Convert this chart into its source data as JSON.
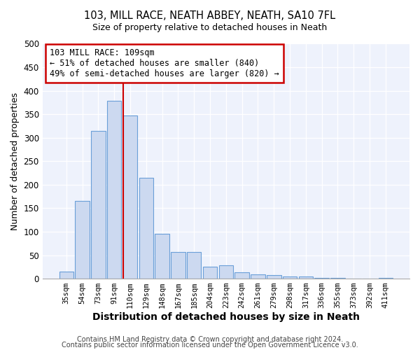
{
  "title": "103, MILL RACE, NEATH ABBEY, NEATH, SA10 7FL",
  "subtitle": "Size of property relative to detached houses in Neath",
  "xlabel": "Distribution of detached houses by size in Neath",
  "ylabel": "Number of detached properties",
  "bar_color": "#ccd9f0",
  "bar_edge_color": "#6a9fd8",
  "categories": [
    "35sqm",
    "54sqm",
    "73sqm",
    "91sqm",
    "110sqm",
    "129sqm",
    "148sqm",
    "167sqm",
    "185sqm",
    "204sqm",
    "223sqm",
    "242sqm",
    "261sqm",
    "279sqm",
    "298sqm",
    "317sqm",
    "336sqm",
    "355sqm",
    "373sqm",
    "392sqm",
    "411sqm"
  ],
  "values": [
    15,
    165,
    315,
    378,
    347,
    215,
    95,
    56,
    56,
    25,
    29,
    14,
    9,
    7,
    5,
    4,
    1,
    2,
    0,
    0,
    2
  ],
  "vline_color": "#cc0000",
  "annotation_text": "103 MILL RACE: 109sqm\n← 51% of detached houses are smaller (840)\n49% of semi-detached houses are larger (820) →",
  "annotation_box_color": "#ffffff",
  "annotation_box_edge": "#cc0000",
  "ylim": [
    0,
    500
  ],
  "yticks": [
    0,
    50,
    100,
    150,
    200,
    250,
    300,
    350,
    400,
    450,
    500
  ],
  "footer1": "Contains HM Land Registry data © Crown copyright and database right 2024.",
  "footer2": "Contains public sector information licensed under the Open Government Licence v3.0.",
  "bg_color": "#ffffff",
  "plot_bg_color": "#eef2fc",
  "grid_color": "#ffffff",
  "vline_x_index": 4
}
